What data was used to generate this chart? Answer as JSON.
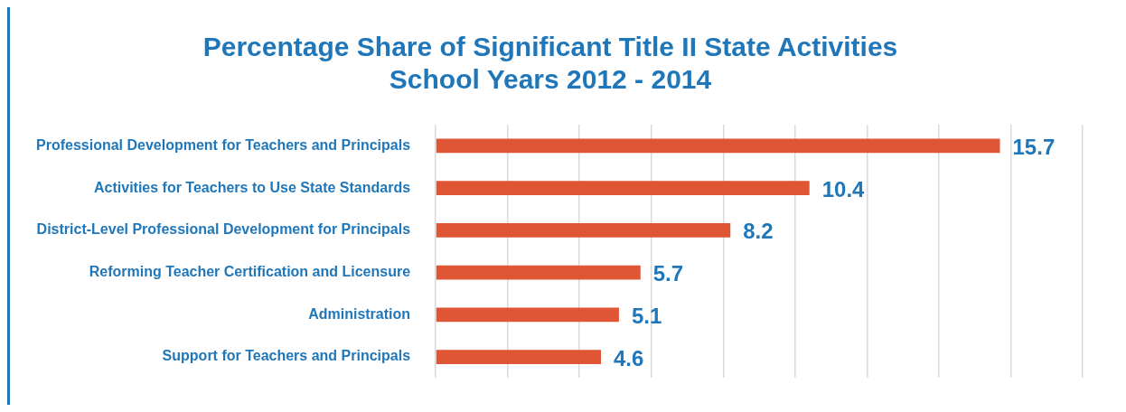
{
  "chart_data": {
    "type": "bar",
    "orientation": "horizontal",
    "title": "Percentage Share of Significant Title II State Activities\nSchool Years 2012 - 2014",
    "categories": [
      "Professional Development for Teachers and Principals",
      "Activities for Teachers to Use State Standards",
      "District-Level Professional Development for Principals",
      "Reforming Teacher Certification and Licensure",
      "Administration",
      "Support for Teachers and Principals"
    ],
    "values": [
      15.7,
      10.4,
      8.2,
      5.7,
      5.1,
      4.6
    ],
    "color": "#e05534",
    "xlim": [
      0,
      18
    ],
    "xticks": [
      {
        "value": 0,
        "label": null
      },
      {
        "value": 2,
        "label": null
      },
      {
        "value": 4,
        "label": null
      },
      {
        "value": 6,
        "label": null
      },
      {
        "value": 8,
        "label": null
      },
      {
        "value": 10,
        "label": null
      },
      {
        "value": 12,
        "label": null
      },
      {
        "value": 14,
        "label": null
      },
      {
        "value": 16,
        "label": null
      },
      {
        "value": 18,
        "label": null
      }
    ],
    "tick_labels": "y",
    "grid": "x",
    "data_labels": true,
    "legend": false
  }
}
